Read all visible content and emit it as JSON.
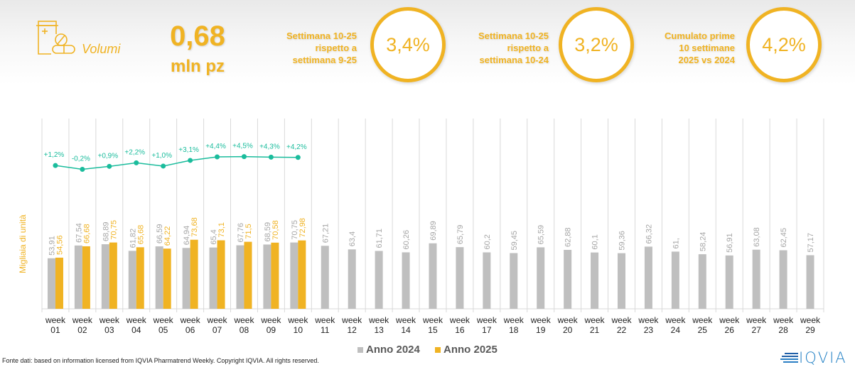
{
  "kpi": {
    "icon": "pill-bottle-icon",
    "label": "Volumi",
    "value": "0,68",
    "unit": "mln pz"
  },
  "stats": [
    {
      "text_lines": [
        "Settimana 10-25",
        "rispetto a",
        "settimana 9-25"
      ],
      "value": "3,4%"
    },
    {
      "text_lines": [
        "Settimana 10-25",
        "rispetto a",
        "settimana 10-24"
      ],
      "value": "3,2%"
    },
    {
      "text_lines": [
        "Cumulato prime",
        "10 settimane",
        "2025 vs 2024"
      ],
      "value": "4,2%"
    }
  ],
  "colors": {
    "accent": "#f0b323",
    "series_2024": "#bfbfbf",
    "series_2025": "#f0b323",
    "growth_line": "#1abc9c",
    "grid": "#d9d9d9"
  },
  "chart_data": {
    "type": "bar",
    "ylabel": "Migliaia di unità",
    "categories": [
      "week 01",
      "week 02",
      "week 03",
      "week 04",
      "week 05",
      "week 06",
      "week 07",
      "week 08",
      "week 09",
      "week 10",
      "week 11",
      "week 12",
      "week 13",
      "week 14",
      "week 15",
      "week 16",
      "week 17",
      "week 18",
      "week 19",
      "week 20",
      "week 21",
      "week 22",
      "week 23",
      "week 24",
      "week 25",
      "week 26",
      "week 27",
      "week 28",
      "week 29"
    ],
    "series": [
      {
        "name": "Anno 2024",
        "labels": [
          "53,91",
          "67,54",
          "68,89",
          "61,82",
          "66,59",
          "64,94",
          "65,4",
          "67,76",
          "68,59",
          "70,75",
          "67,21",
          "63,4",
          "61,71",
          "60,26",
          "69,89",
          "65,79",
          "60,2",
          "59,45",
          "65,59",
          "62,88",
          "60,1",
          "59,36",
          "66,32",
          "61,",
          "58,24",
          "56,91",
          "63,08",
          "62,45",
          "57,17"
        ],
        "values": [
          53.91,
          67.54,
          68.89,
          61.82,
          66.59,
          64.94,
          65.4,
          67.76,
          68.59,
          70.75,
          67.21,
          63.4,
          61.71,
          60.26,
          69.89,
          65.79,
          60.2,
          59.45,
          65.59,
          62.88,
          60.1,
          59.36,
          66.32,
          61.0,
          58.24,
          56.91,
          63.08,
          62.45,
          57.17
        ]
      },
      {
        "name": "Anno 2025",
        "labels": [
          "54,56",
          "66,68",
          "70,75",
          "65,68",
          "64,22",
          "73,68",
          "73,1",
          "71,5",
          "70,58",
          "72,98"
        ],
        "values": [
          54.56,
          66.68,
          70.75,
          65.68,
          64.22,
          73.68,
          73.1,
          71.5,
          70.58,
          72.98
        ]
      }
    ],
    "growth": {
      "name": "Var. % 2025 vs 2024",
      "labels": [
        "+1,2%",
        "-0,2%",
        "+0,9%",
        "+2,2%",
        "+1,0%",
        "+3,1%",
        "+4,4%",
        "+4,5%",
        "+4,3%",
        "+4,2%"
      ],
      "values": [
        1.2,
        -0.2,
        0.9,
        2.2,
        1.0,
        3.1,
        4.4,
        4.5,
        4.3,
        4.2
      ]
    },
    "ylim": [
      0,
      203
    ],
    "grid": "vertical",
    "legend": "bottom-center"
  },
  "legend": {
    "item_2024": "Anno 2024",
    "item_2025": "Anno 2025"
  },
  "footer": {
    "source": "Fonte dati: based on information licensed from IQVIA Pharmatrend Weekly. Copyright IQVIA. All rights reserved.",
    "logo": "IQVIA"
  }
}
